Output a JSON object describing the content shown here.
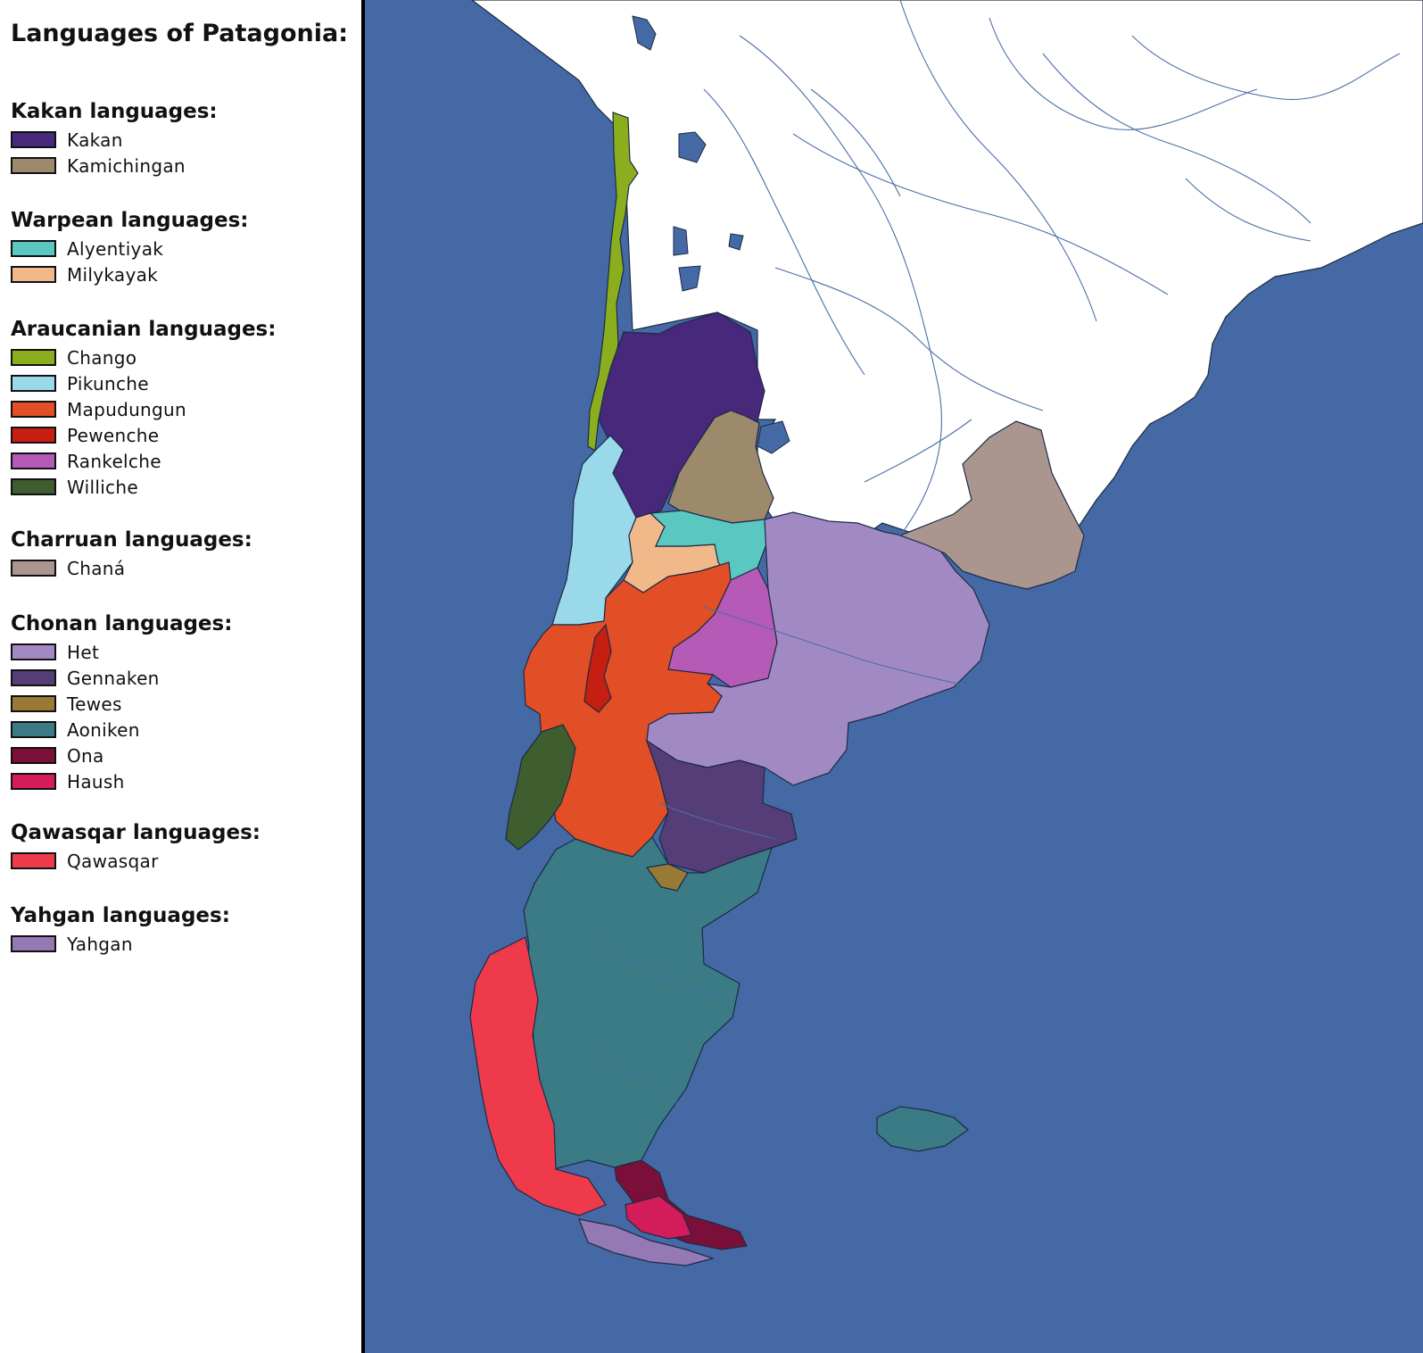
{
  "legend": {
    "title": "Languages of Patagonia:",
    "groups": [
      {
        "heading": "Kakan languages:",
        "items": [
          {
            "label": "Kakan",
            "color": "#47287a"
          },
          {
            "label": "Kamichingan",
            "color": "#9d8a6c"
          }
        ]
      },
      {
        "heading": "Warpean languages:",
        "items": [
          {
            "label": "Alyentiyak",
            "color": "#5ac7c0"
          },
          {
            "label": "Milykayak",
            "color": "#f1b98a"
          }
        ]
      },
      {
        "heading": "Araucanian languages:",
        "items": [
          {
            "label": "Chango",
            "color": "#8aae1e"
          },
          {
            "label": "Pikunche",
            "color": "#9ad9ea"
          },
          {
            "label": "Mapudungun",
            "color": "#e24e25"
          },
          {
            "label": "Pewenche",
            "color": "#c61f12"
          },
          {
            "label": "Rankelche",
            "color": "#b55ab7"
          },
          {
            "label": "Williche",
            "color": "#3f5e2f"
          }
        ]
      },
      {
        "heading": "Charruan languages:",
        "items": [
          {
            "label": "Chaná",
            "color": "#ab968f"
          }
        ]
      },
      {
        "heading": "Chonan languages:",
        "items": [
          {
            "label": "Het",
            "color": "#a18ac4"
          },
          {
            "label": "Gennaken",
            "color": "#553d77"
          },
          {
            "label": "Tewes",
            "color": "#987a35"
          },
          {
            "label": "Aoniken",
            "color": "#3a7b86"
          },
          {
            "label": "Ona",
            "color": "#7a1039"
          },
          {
            "label": "Haush",
            "color": "#d41c5a"
          }
        ]
      },
      {
        "heading": "Qawasqar languages:",
        "items": [
          {
            "label": "Qawasqar",
            "color": "#ee3a4a"
          }
        ]
      },
      {
        "heading": "Yahgan languages:",
        "items": [
          {
            "label": "Yahgan",
            "color": "#9479b4"
          }
        ]
      }
    ]
  },
  "map": {
    "ocean_color": "#4569a4",
    "land_color": "#ffffff",
    "river_color": "#4a6ea6",
    "border_color": "#222222"
  }
}
